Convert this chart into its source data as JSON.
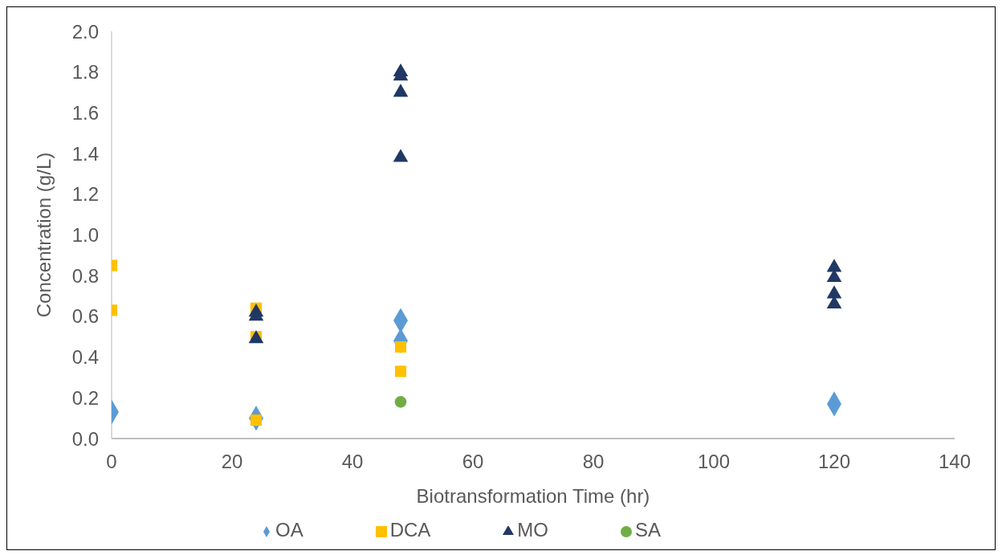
{
  "chart_data": {
    "type": "scatter",
    "xlabel": "Biotransformation Time (hr)",
    "ylabel": "Concentration (g/L)",
    "xlim": [
      0,
      140
    ],
    "xticks": [
      0,
      20,
      40,
      60,
      80,
      100,
      120,
      140
    ],
    "ylim": [
      0,
      2
    ],
    "yticks": [
      {
        "value": 0,
        "label": "0.0"
      },
      {
        "value": 0.2,
        "label": "0.2"
      },
      {
        "value": 0.4,
        "label": "0.4"
      },
      {
        "value": 0.6,
        "label": "0.6"
      },
      {
        "value": 0.8,
        "label": "0.8"
      },
      {
        "value": 1,
        "label": "1.0"
      },
      {
        "value": 1.2,
        "label": "1.2"
      },
      {
        "value": 1.4,
        "label": "1.4"
      },
      {
        "value": 1.6,
        "label": "1.6"
      },
      {
        "value": 1.8,
        "label": "1.8"
      },
      {
        "value": 2,
        "label": "2.0"
      }
    ],
    "grid": false,
    "legend": "bottom",
    "series": [
      {
        "name": "OA",
        "color": "#5b9bd5",
        "marker": "diamond",
        "x": [
          0,
          24,
          48,
          48,
          120
        ],
        "values": [
          0.13,
          0.1,
          0.58,
          0.48,
          0.17
        ]
      },
      {
        "name": "DCA",
        "color": "#ffc000",
        "marker": "square",
        "x": [
          0,
          0,
          24,
          24,
          24,
          48,
          48
        ],
        "values": [
          0.85,
          0.63,
          0.64,
          0.5,
          0.09,
          0.45,
          0.33
        ]
      },
      {
        "name": "MO",
        "color": "#203864",
        "marker": "triangle",
        "x": [
          24,
          24,
          24,
          48,
          48,
          48,
          48,
          120,
          120,
          120,
          120
        ],
        "values": [
          0.62,
          0.6,
          0.49,
          1.8,
          1.78,
          1.7,
          1.38,
          0.84,
          0.79,
          0.71,
          0.66
        ]
      },
      {
        "name": "SA",
        "color": "#70ad47",
        "marker": "circle",
        "x": [
          48
        ],
        "values": [
          0.18
        ]
      }
    ]
  }
}
